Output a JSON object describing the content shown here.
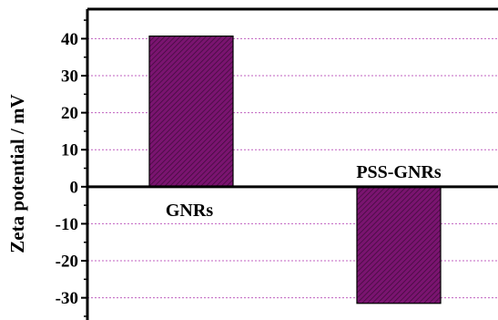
{
  "chart_data": {
    "type": "bar",
    "categories": [
      "GNRs",
      "PSS-GNRs"
    ],
    "values": [
      40.7,
      -31.5
    ],
    "title": "",
    "xlabel": "",
    "ylabel": "Zeta potential / mV",
    "ylim": [
      -36,
      47
    ],
    "yticks": [
      -30,
      -20,
      -10,
      0,
      10,
      20,
      30,
      40
    ],
    "ytick_labels": [
      "-30",
      "-20",
      "-10",
      "0",
      "10",
      "20",
      "30",
      "40"
    ],
    "grid": "horizontal dotted",
    "colors": {
      "bar_fill": "#7a1470",
      "bar_hatch": "#3d0a38",
      "grid": "#c060c0",
      "axis": "#000000"
    }
  }
}
